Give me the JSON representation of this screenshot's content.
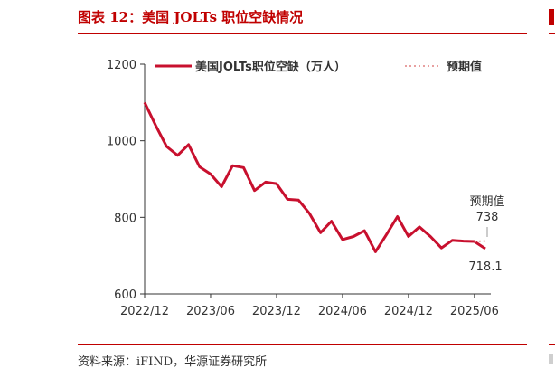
{
  "figure": {
    "title": "图表 12：美国 JOLTs 职位空缺情况",
    "source": "资料来源：iFIND，华源证券研究所"
  },
  "colors": {
    "accent": "#c00000",
    "series": "#c8102e",
    "forecast": "#e8a0a0"
  },
  "chart_data": {
    "type": "line",
    "ylim": [
      600,
      1200
    ],
    "yticks": [
      600,
      800,
      1000,
      1200
    ],
    "xtick_labels": [
      "2022/12",
      "2023/06",
      "2023/12",
      "2024/06",
      "2024/12",
      "2025/06"
    ],
    "grid": false,
    "legend_position": "top",
    "series": [
      {
        "name": "美国JOLTs职位空缺（万人）",
        "x": [
          "2022/12",
          "2023/01",
          "2023/02",
          "2023/03",
          "2023/04",
          "2023/05",
          "2023/06",
          "2023/07",
          "2023/08",
          "2023/09",
          "2023/10",
          "2023/11",
          "2023/12",
          "2024/01",
          "2024/02",
          "2024/03",
          "2024/04",
          "2024/05",
          "2024/06",
          "2024/07",
          "2024/08",
          "2024/09",
          "2024/10",
          "2024/11",
          "2024/12",
          "2025/01",
          "2025/02",
          "2025/03",
          "2025/04",
          "2025/05",
          "2025/06",
          "2025/07"
        ],
        "values": [
          1100,
          1040,
          985,
          962,
          990,
          932,
          913,
          880,
          935,
          930,
          870,
          892,
          888,
          847,
          845,
          810,
          760,
          790,
          742,
          750,
          765,
          710,
          755,
          802,
          750,
          775,
          750,
          720,
          740,
          738,
          737,
          718.1
        ]
      },
      {
        "name": "预期值",
        "x": [
          "2025/06",
          "2025/07"
        ],
        "values": [
          737,
          738
        ]
      }
    ],
    "annotations": {
      "forecast_label": "预期值",
      "forecast_value": "738",
      "last_value": "718.1"
    }
  }
}
